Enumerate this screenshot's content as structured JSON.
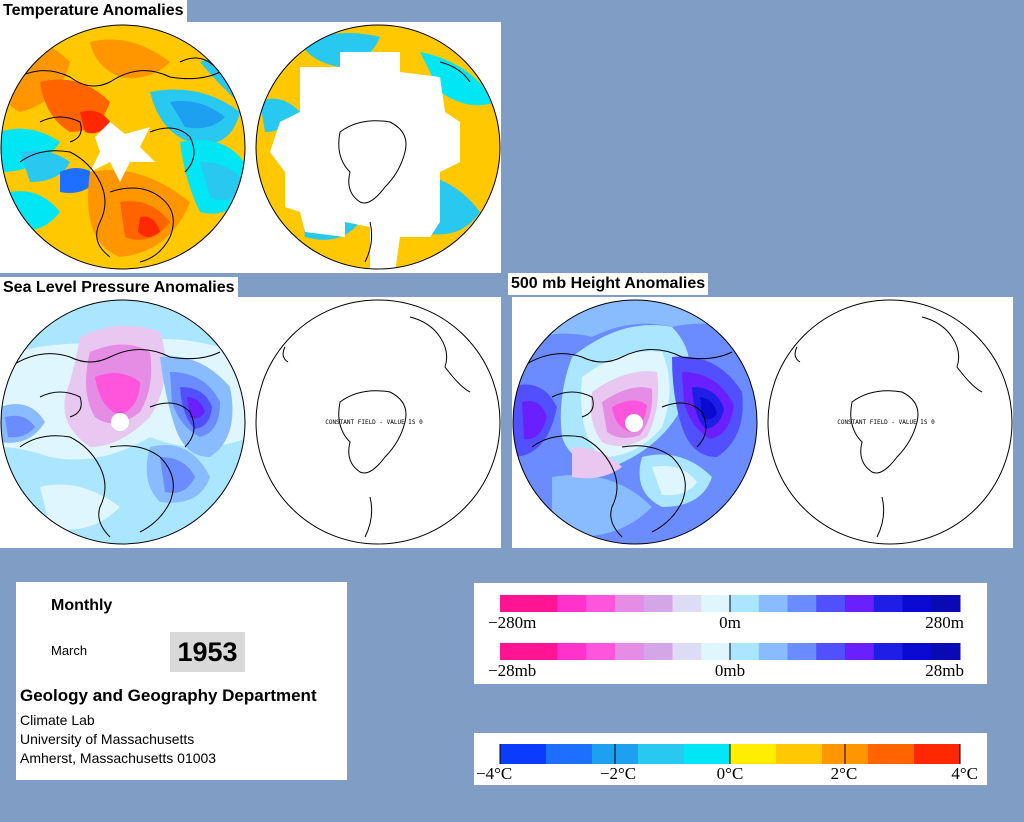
{
  "titles": {
    "temperature": "Temperature Anomalies",
    "slp": "Sea Level Pressure Anomalies",
    "height500": "500 mb Height Anomalies"
  },
  "map_labels": {
    "constant_field": "CONSTANT FIELD - VALUE IS 0"
  },
  "info": {
    "period": "Monthly",
    "month": "March",
    "year": "1953",
    "department": "Geology and Geography Department",
    "lab": "Climate Lab",
    "university": "University of Massachusetts",
    "address": "Amherst, Massachusetts 01003"
  },
  "legend_height": {
    "labels": [
      "−280m",
      "0m",
      "280m"
    ],
    "colors": [
      "#ff1493",
      "#ff1493",
      "#ff33cc",
      "#ff55dd",
      "#e58ce5",
      "#d4a6e8",
      "#dcdcf4",
      "#dff6ff",
      "#aae6ff",
      "#88bbff",
      "#6a8cff",
      "#5050ff",
      "#6a1fff",
      "#1e1ee6",
      "#0a0ad2",
      "#0a0ab4"
    ]
  },
  "legend_pressure": {
    "labels": [
      "−28mb",
      "0mb",
      "28mb"
    ]
  },
  "legend_temperature": {
    "labels": [
      "−4°C",
      "−2°C",
      "0°C",
      "2°C",
      "4°C"
    ],
    "colors": [
      "#0a3cff",
      "#1e6eff",
      "#1ea0f0",
      "#28c8f0",
      "#00e6f5",
      "#ffee00",
      "#ffc800",
      "#ff9600",
      "#ff6400",
      "#ff2800"
    ]
  }
}
